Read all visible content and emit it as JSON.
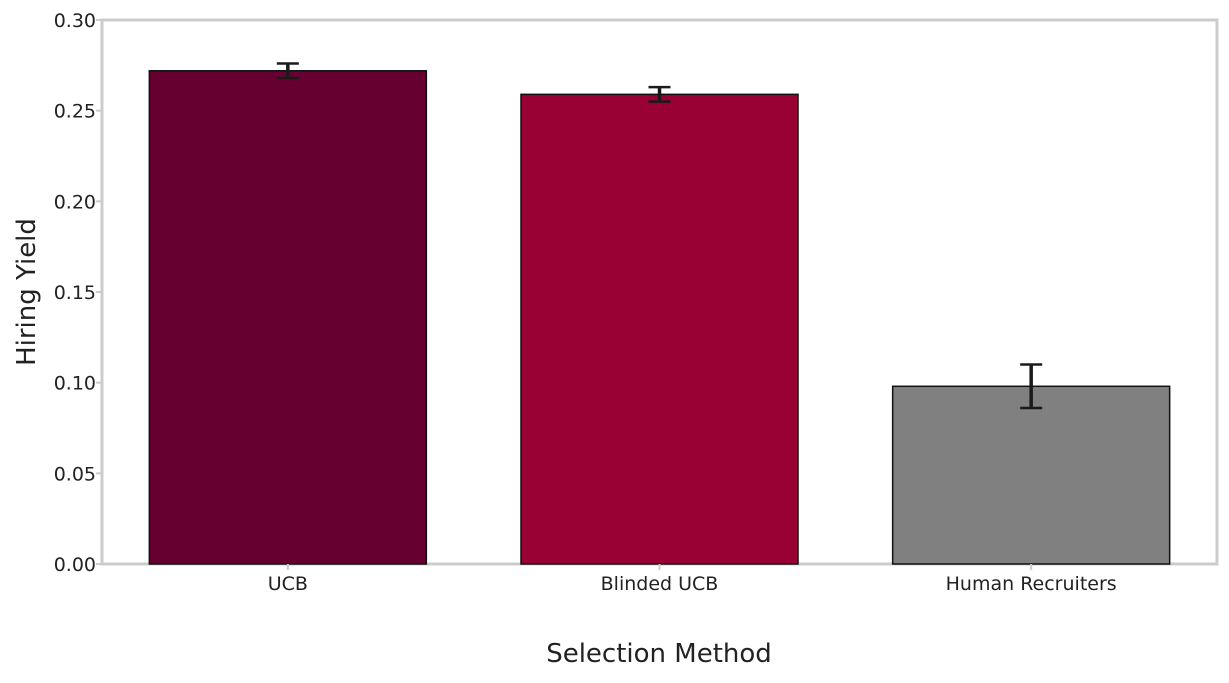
{
  "chart_data": {
    "type": "bar",
    "title": "",
    "xlabel": "Selection Method",
    "ylabel": "Hiring Yield",
    "categories": [
      "UCB",
      "Blinded UCB",
      "Human Recruiters"
    ],
    "values": [
      0.272,
      0.259,
      0.098
    ],
    "error_low": [
      0.268,
      0.255,
      0.086
    ],
    "error_high": [
      0.276,
      0.263,
      0.11
    ],
    "ylim": [
      0,
      0.3
    ],
    "yticks": [
      "0.00",
      "0.05",
      "0.10",
      "0.15",
      "0.20",
      "0.25",
      "0.30"
    ],
    "ytick_values": [
      0,
      0.05,
      0.1,
      0.15,
      0.2,
      0.25,
      0.3
    ],
    "bar_colors": [
      "#660030",
      "#990033",
      "#808080"
    ],
    "frame_color": "#cccccc",
    "grid": false,
    "legend": "none"
  }
}
